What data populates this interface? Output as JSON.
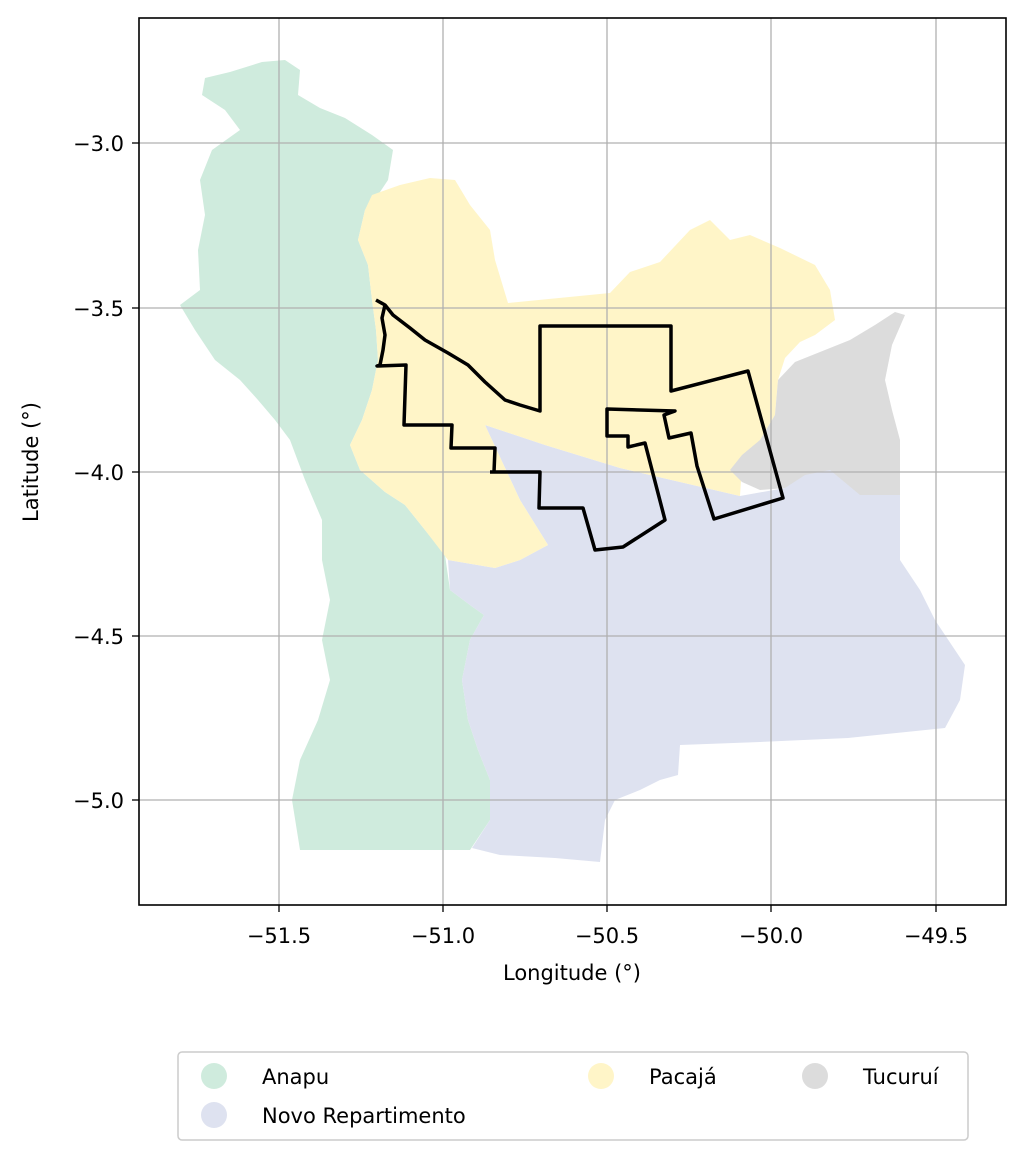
{
  "axes": {
    "xlabel": "Longitude (°)",
    "ylabel": "Latitude (°)",
    "x_ticks": [
      "−51.5",
      "−51.0",
      "−50.5",
      "−50.0",
      "−49.5"
    ],
    "y_ticks": [
      "−3.0",
      "−3.5",
      "−4.0",
      "−4.5",
      "−5.0"
    ],
    "xlim": [
      -51.93,
      -49.28
    ],
    "ylim": [
      -5.31,
      -2.62
    ],
    "grid": true
  },
  "legend": {
    "placement": "bottom-center",
    "items": [
      {
        "label": "Anapu",
        "color": "#cfebdd"
      },
      {
        "label": "Novo Repartimento",
        "color": "#dee2f0"
      },
      {
        "label": "Pacajá",
        "color": "#fff5c8"
      },
      {
        "label": "Tucuruí",
        "color": "#dcdcdc"
      }
    ]
  },
  "regions": [
    {
      "name": "Anapu",
      "color": "#cfebdd"
    },
    {
      "name": "Novo Repartimento",
      "color": "#dee2f0"
    },
    {
      "name": "Pacajá",
      "color": "#fff5c8"
    },
    {
      "name": "Tucuruí",
      "color": "#dcdcdc"
    }
  ],
  "outline_color": "#000000"
}
